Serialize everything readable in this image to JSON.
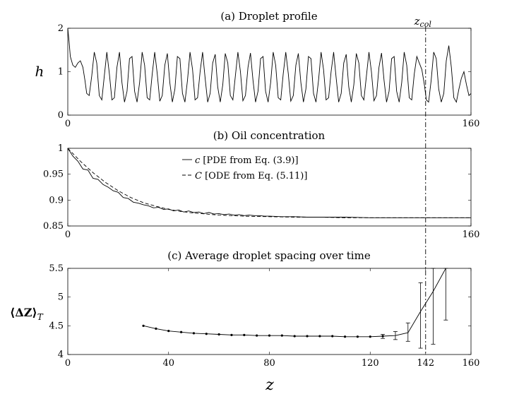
{
  "figure": {
    "x_label": "z",
    "z_col_label": "z",
    "z_col_subscript": "col",
    "z_col_value": 142
  },
  "chart_data": [
    {
      "type": "line",
      "title": "(a) Droplet profile",
      "ylabel": "h",
      "xlim": [
        0,
        160
      ],
      "ylim": [
        0,
        2
      ],
      "x_ticks": [
        "0",
        "160"
      ],
      "y_ticks": [
        "0",
        "1",
        "2"
      ],
      "x_tick_values": [
        0,
        160
      ],
      "y_tick_values": [
        0,
        1,
        2
      ],
      "series": [
        {
          "name": "h",
          "style": "solid",
          "x": [
            0,
            0.5,
            1,
            2,
            3,
            4,
            5,
            6,
            6.8,
            7.5,
            8.5,
            9.5,
            10.5,
            11.5,
            12.5,
            13.5,
            14.5,
            15.5,
            16.5,
            17.5,
            18.5,
            19.5,
            20.5,
            21.5,
            22.5,
            23.5,
            24.5,
            25.5,
            26.5,
            27.5,
            28.5,
            29.5,
            30.5,
            31.5,
            32.5,
            33.5,
            34.5,
            35.5,
            36.5,
            37.5,
            38.5,
            39.5,
            40.5,
            41.5,
            42.5,
            43.5,
            44.5,
            45.5,
            46.5,
            47.5,
            48.5,
            49.5,
            50.5,
            51.5,
            52.5,
            53.5,
            54.5,
            55.5,
            56.5,
            57.5,
            58.5,
            59.5,
            60.5,
            61.5,
            62.5,
            63.5,
            64.5,
            65.5,
            66.5,
            67.5,
            68.5,
            69.5,
            70.5,
            71.5,
            72.5,
            73.5,
            74.5,
            75.5,
            76.5,
            77.5,
            78.5,
            79.5,
            80.5,
            81.5,
            82.5,
            83.5,
            84.5,
            85.5,
            86.5,
            87.5,
            88.5,
            89.5,
            90.5,
            91.5,
            92.5,
            93.5,
            94.5,
            95.5,
            96.5,
            97.5,
            98.5,
            99.5,
            100.5,
            101.5,
            102.5,
            103.5,
            104.5,
            105.5,
            106.5,
            107.5,
            108.5,
            109.5,
            110.5,
            111.5,
            112.5,
            113.5,
            114.5,
            115.5,
            116.5,
            117.5,
            118.5,
            119.5,
            120.5,
            121.5,
            122.5,
            123.5,
            124.5,
            125.5,
            126.5,
            127.5,
            128.5,
            129.5,
            130.5,
            131.5,
            132.5,
            133.5,
            134.5,
            135.5,
            136.5,
            137.5,
            138.5,
            139.5,
            140.5,
            141.5,
            142.3,
            143.2,
            144.2,
            145.2,
            146.2,
            147.2,
            148.2,
            149.2,
            150.2,
            151.2,
            152.2,
            153.2,
            154.2,
            155.2,
            156.2,
            157.2,
            158.2,
            159.2,
            160
          ],
          "y": [
            2.0,
            1.7,
            1.35,
            1.15,
            1.1,
            1.2,
            1.25,
            1.1,
            0.8,
            0.5,
            0.45,
            0.9,
            1.45,
            1.2,
            0.45,
            0.35,
            0.9,
            1.45,
            0.95,
            0.35,
            0.4,
            1.1,
            1.45,
            0.75,
            0.3,
            0.55,
            1.3,
            1.35,
            0.55,
            0.3,
            0.75,
            1.45,
            1.15,
            0.4,
            0.35,
            0.95,
            1.45,
            0.95,
            0.32,
            0.45,
            1.15,
            1.42,
            0.75,
            0.3,
            0.6,
            1.35,
            1.3,
            0.5,
            0.3,
            0.8,
            1.45,
            1.05,
            0.35,
            0.4,
            1.0,
            1.45,
            0.85,
            0.3,
            0.5,
            1.2,
            1.4,
            0.65,
            0.3,
            0.7,
            1.42,
            1.2,
            0.45,
            0.35,
            0.9,
            1.45,
            1.0,
            0.33,
            0.45,
            1.1,
            1.43,
            0.8,
            0.3,
            0.55,
            1.3,
            1.35,
            0.55,
            0.3,
            0.75,
            1.45,
            1.15,
            0.4,
            0.35,
            0.95,
            1.45,
            0.95,
            0.32,
            0.45,
            1.15,
            1.42,
            0.75,
            0.3,
            0.6,
            1.35,
            1.3,
            0.5,
            0.3,
            0.8,
            1.45,
            1.05,
            0.35,
            0.4,
            1.0,
            1.45,
            0.85,
            0.3,
            0.5,
            1.2,
            1.4,
            0.65,
            0.3,
            0.7,
            1.42,
            1.2,
            0.45,
            0.35,
            0.9,
            1.45,
            1.0,
            0.33,
            0.45,
            1.1,
            1.43,
            0.8,
            0.3,
            0.55,
            1.3,
            1.35,
            0.55,
            0.3,
            0.75,
            1.45,
            1.15,
            0.4,
            0.35,
            0.95,
            1.35,
            1.2,
            1.05,
            0.7,
            0.35,
            0.3,
            0.8,
            1.45,
            1.3,
            0.6,
            0.3,
            0.5,
            1.25,
            1.6,
            1.1,
            0.4,
            0.3,
            0.6,
            0.85,
            1.0,
            0.7,
            0.45,
            0.5
          ]
        }
      ]
    },
    {
      "type": "line",
      "title": "(b) Oil concentration",
      "ylabel": "",
      "xlim": [
        0,
        160
      ],
      "ylim": [
        0.85,
        1.0
      ],
      "x_ticks": [
        "0",
        "160"
      ],
      "y_ticks": [
        "0.85",
        "0.9",
        "0.95",
        "1"
      ],
      "x_tick_values": [
        0,
        160
      ],
      "y_tick_values": [
        0.85,
        0.9,
        0.95,
        1.0
      ],
      "legend_position": "top-center",
      "series": [
        {
          "name": "c [PDE from Eq. (3.9)]",
          "legend_symbol": "c",
          "legend_text": " [PDE from Eq. (3.9)]",
          "style": "solid",
          "x": [
            0,
            2,
            4,
            6,
            8,
            10,
            12,
            14,
            16,
            18,
            20,
            22,
            24,
            26,
            28,
            30,
            32,
            34,
            36,
            38,
            40,
            42,
            44,
            46,
            48,
            50,
            52,
            54,
            56,
            58,
            60,
            62,
            64,
            66,
            68,
            70,
            72,
            74,
            76,
            78,
            80,
            85,
            90,
            95,
            100,
            110,
            120,
            130,
            140,
            150,
            160
          ],
          "y": [
            1.0,
            0.985,
            0.975,
            0.96,
            0.958,
            0.942,
            0.94,
            0.93,
            0.925,
            0.918,
            0.915,
            0.905,
            0.903,
            0.896,
            0.894,
            0.891,
            0.889,
            0.885,
            0.886,
            0.882,
            0.883,
            0.879,
            0.881,
            0.877,
            0.879,
            0.876,
            0.877,
            0.874,
            0.876,
            0.873,
            0.874,
            0.872,
            0.873,
            0.871,
            0.872,
            0.87,
            0.871,
            0.87,
            0.87,
            0.869,
            0.869,
            0.868,
            0.868,
            0.867,
            0.867,
            0.867,
            0.866,
            0.866,
            0.866,
            0.866,
            0.866
          ]
        },
        {
          "name": "C [ODE from Eq. (5.11)]",
          "legend_symbol": "C",
          "legend_text": " [ODE from Eq. (5.11)]",
          "style": "dashed",
          "x": [
            0,
            5,
            10,
            15,
            20,
            25,
            30,
            35,
            40,
            45,
            50,
            55,
            60,
            70,
            80,
            90,
            100,
            110,
            120,
            130,
            140,
            150,
            160
          ],
          "y": [
            1.0,
            0.975,
            0.953,
            0.934,
            0.918,
            0.905,
            0.895,
            0.888,
            0.882,
            0.878,
            0.875,
            0.873,
            0.871,
            0.869,
            0.868,
            0.867,
            0.867,
            0.866,
            0.866,
            0.866,
            0.866,
            0.866,
            0.866
          ]
        }
      ]
    },
    {
      "type": "line",
      "title": "(c) Average droplet spacing over time",
      "ylabel_main": "⟨ΔZ⟩",
      "ylabel_sub": "T",
      "xlim": [
        0,
        160
      ],
      "ylim": [
        4,
        5.5
      ],
      "x_ticks": [
        "0",
        "40",
        "80",
        "120",
        "142",
        "160"
      ],
      "x_tick_values": [
        0,
        40,
        80,
        120,
        142,
        160
      ],
      "y_ticks": [
        "4",
        "4.5",
        "5",
        "5.5"
      ],
      "y_tick_values": [
        4,
        4.5,
        5,
        5.5
      ],
      "series": [
        {
          "name": "average spacing",
          "style": "solid-markers",
          "x": [
            30,
            35,
            40,
            45,
            50,
            55,
            60,
            65,
            70,
            75,
            80,
            85,
            90,
            95,
            100,
            105,
            110,
            115,
            120,
            125,
            130,
            135,
            140,
            145,
            150
          ],
          "y": [
            4.5,
            4.45,
            4.41,
            4.39,
            4.37,
            4.36,
            4.35,
            4.34,
            4.34,
            4.33,
            4.33,
            4.33,
            4.32,
            4.32,
            4.32,
            4.32,
            4.31,
            4.31,
            4.31,
            4.32,
            4.33,
            4.38,
            4.75,
            5.1,
            5.5
          ],
          "error_low": [
            4.5,
            4.45,
            4.41,
            4.39,
            4.37,
            4.36,
            4.35,
            4.34,
            4.34,
            4.33,
            4.33,
            4.33,
            4.32,
            4.32,
            4.32,
            4.32,
            4.31,
            4.31,
            4.31,
            4.28,
            4.26,
            4.23,
            4.11,
            4.18,
            4.6
          ],
          "error_high": [
            4.5,
            4.45,
            4.41,
            4.39,
            4.37,
            4.36,
            4.35,
            4.34,
            4.34,
            4.33,
            4.33,
            4.33,
            4.32,
            4.32,
            4.32,
            4.32,
            4.31,
            4.31,
            4.31,
            4.35,
            4.4,
            4.55,
            5.25,
            5.5,
            5.5
          ]
        }
      ]
    }
  ]
}
